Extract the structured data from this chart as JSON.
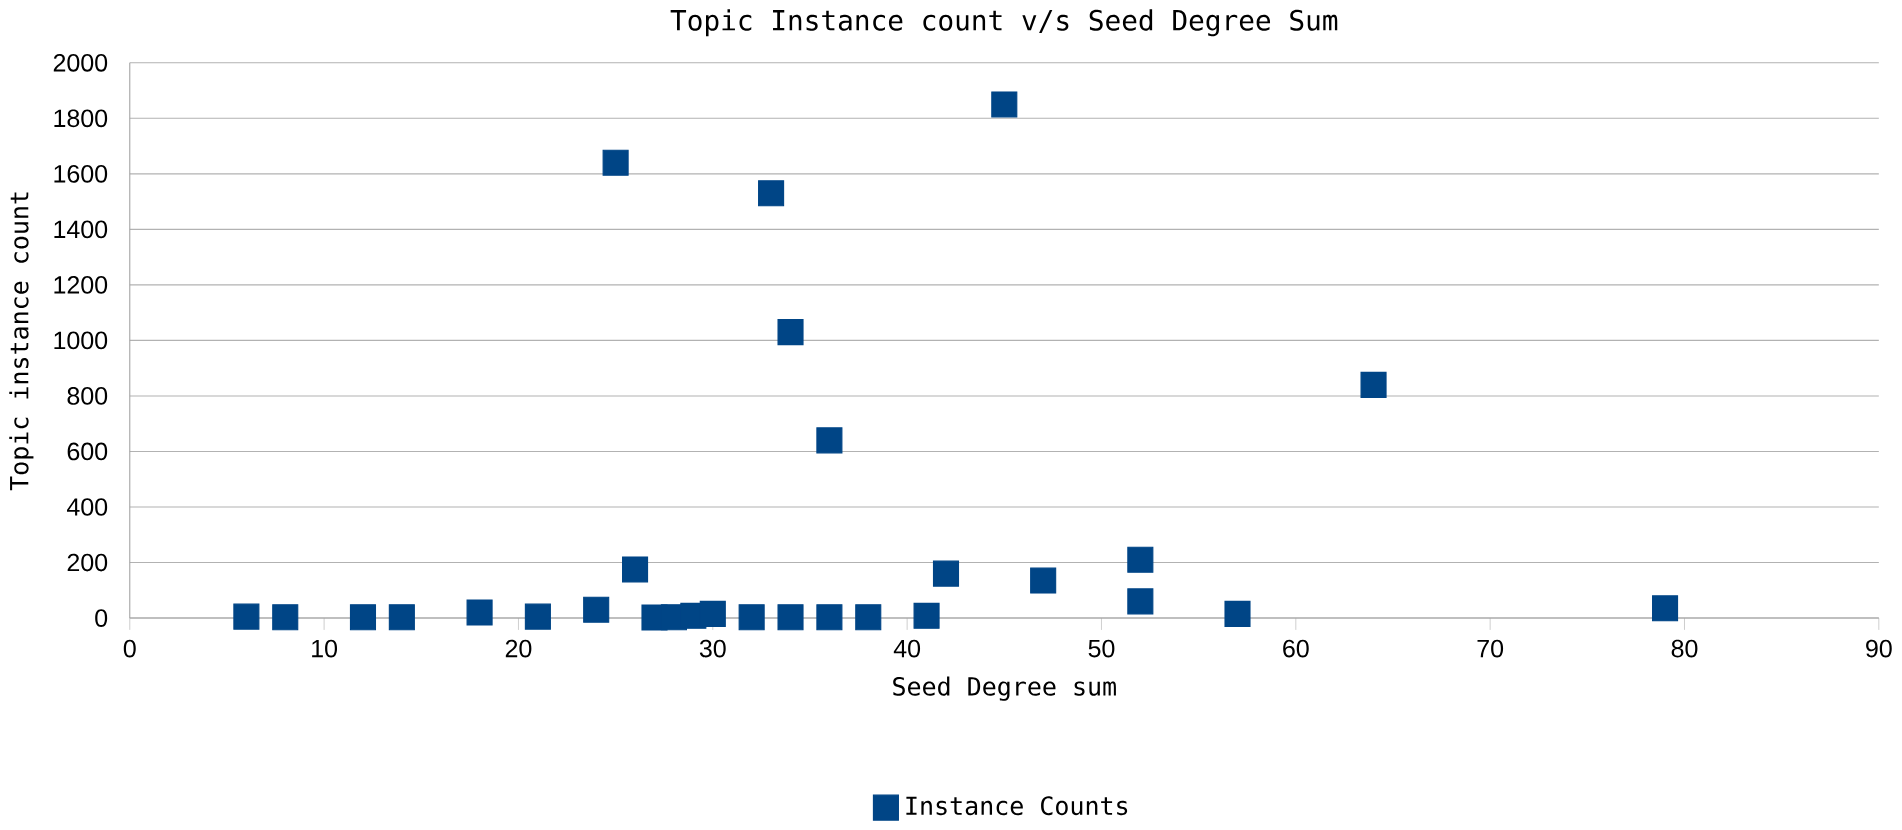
{
  "chart_data": {
    "type": "scatter",
    "title": "Topic Instance count v/s Seed Degree Sum",
    "xlabel": "Seed Degree sum",
    "ylabel": "Topic instance count",
    "xlim": [
      0,
      90
    ],
    "xticks": [
      0,
      10,
      20,
      30,
      40,
      50,
      60,
      70,
      80,
      90
    ],
    "ylim": [
      0,
      2000
    ],
    "yticks": [
      0,
      200,
      400,
      600,
      800,
      1000,
      1200,
      1400,
      1600,
      1800,
      2000
    ],
    "grid": "y",
    "legend": "bottom",
    "marker": "square",
    "series": [
      {
        "name": "Instance Counts",
        "color": "#004586",
        "x": [
          6,
          8,
          12,
          14,
          18,
          21,
          24,
          25,
          26,
          27,
          28,
          29,
          30,
          32,
          33,
          34,
          34,
          36,
          36,
          38,
          41,
          42,
          45,
          47,
          52,
          52,
          57,
          64,
          79
        ],
        "values": [
          5,
          3,
          3,
          3,
          20,
          5,
          30,
          1640,
          175,
          2,
          3,
          8,
          15,
          3,
          1530,
          1030,
          3,
          640,
          3,
          3,
          8,
          160,
          1850,
          135,
          210,
          60,
          15,
          840,
          35
        ]
      }
    ]
  }
}
